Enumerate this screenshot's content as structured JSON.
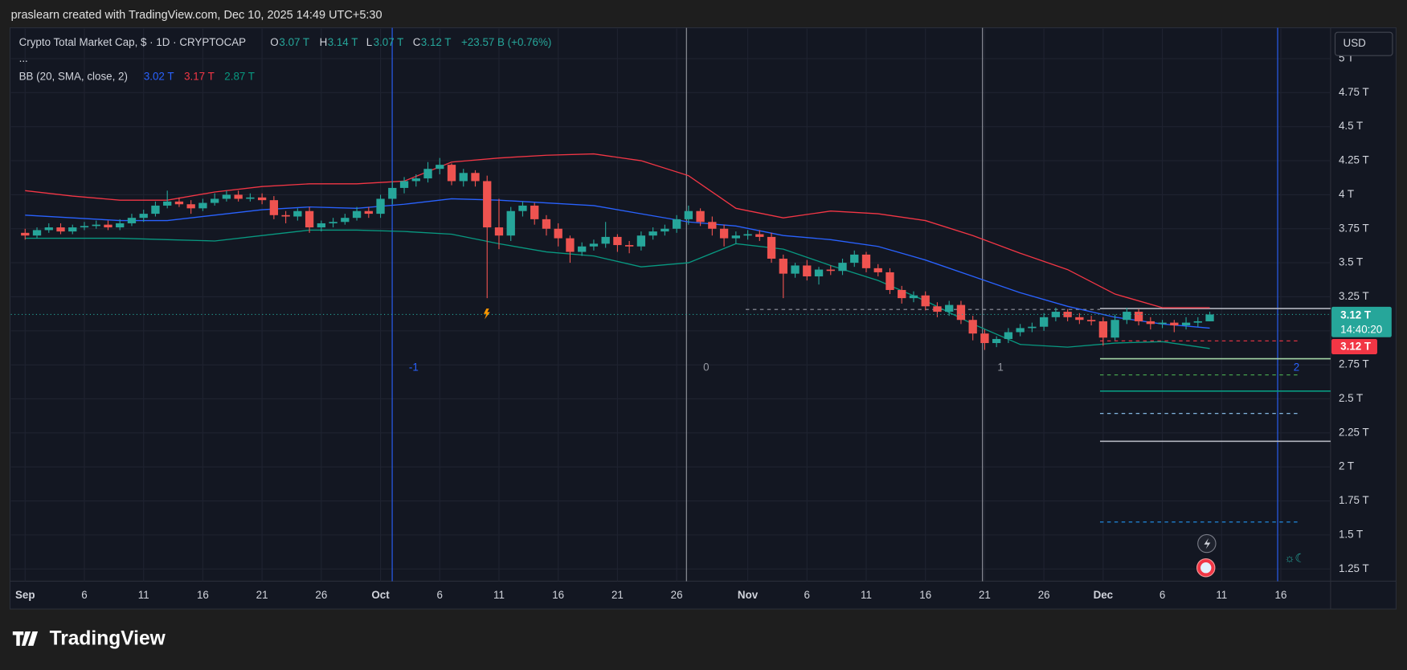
{
  "watermark": "praslearn created with TradingView.com, Dec 10, 2025 14:49 UTC+5:30",
  "footer": "TradingView",
  "currency": "USD",
  "legend": {
    "symbol": "Crypto Total Market Cap, $ · 1D · CRYPTOCAP",
    "o_key": "O",
    "o": "3.07 T",
    "h_key": "H",
    "h": "3.14 T",
    "l_key": "L",
    "l": "3.07 T",
    "c_key": "C",
    "c": "3.12 T",
    "change": "+23.57 B (+0.76%)",
    "more": "...",
    "bb": "BB (20, SMA, close, 2)",
    "bb_mid": "3.02 T",
    "bb_up": "3.17 T",
    "bb_low": "2.87 T"
  },
  "price_tag": {
    "price": "3.12 T",
    "countdown": "14:40:20",
    "marker": "3.12 T"
  },
  "levels": [
    "-1",
    "0",
    "1",
    "2"
  ],
  "chart_data": {
    "type": "candlestick",
    "up_color": "#26a69a",
    "down_color": "#ef5350",
    "grid": true,
    "xlim": [
      -1.2,
      110.2
    ],
    "ylim": [
      1.16,
      5.22
    ],
    "xticks": [
      {
        "value": 0,
        "label": "Sep"
      },
      {
        "value": 5,
        "label": "6"
      },
      {
        "value": 10,
        "label": "11"
      },
      {
        "value": 15,
        "label": "16"
      },
      {
        "value": 20,
        "label": "21"
      },
      {
        "value": 25,
        "label": "26"
      },
      {
        "value": 30,
        "label": "Oct"
      },
      {
        "value": 35,
        "label": "6"
      },
      {
        "value": 40,
        "label": "11"
      },
      {
        "value": 45,
        "label": "16"
      },
      {
        "value": 50,
        "label": "21"
      },
      {
        "value": 55,
        "label": "26"
      },
      {
        "value": 61,
        "label": "Nov"
      },
      {
        "value": 66,
        "label": "6"
      },
      {
        "value": 71,
        "label": "11"
      },
      {
        "value": 76,
        "label": "16"
      },
      {
        "value": 81,
        "label": "21"
      },
      {
        "value": 86,
        "label": "26"
      },
      {
        "value": 91,
        "label": "Dec"
      },
      {
        "value": 96,
        "label": "6"
      },
      {
        "value": 101,
        "label": "11"
      },
      {
        "value": 106,
        "label": "16"
      }
    ],
    "yticks": [
      {
        "value": 1.25,
        "label": "1.25 T"
      },
      {
        "value": 1.5,
        "label": "1.5 T"
      },
      {
        "value": 1.75,
        "label": "1.75 T"
      },
      {
        "value": 2,
        "label": "2 T"
      },
      {
        "value": 2.25,
        "label": "2.25 T"
      },
      {
        "value": 2.5,
        "label": "2.5 T"
      },
      {
        "value": 2.75,
        "label": "2.75 T"
      },
      {
        "value": 3,
        "label": "3 T"
      },
      {
        "value": 3.25,
        "label": "3.25 T"
      },
      {
        "value": 3.5,
        "label": "3.5 T"
      },
      {
        "value": 3.75,
        "label": "3.75 T"
      },
      {
        "value": 4,
        "label": "4 T"
      },
      {
        "value": 4.25,
        "label": "4.25 T"
      },
      {
        "value": 4.5,
        "label": "4.5 T"
      },
      {
        "value": 4.75,
        "label": "4.75 T"
      },
      {
        "value": 5,
        "label": "5 T"
      }
    ],
    "open": [
      3.72,
      3.7,
      3.74,
      3.76,
      3.73,
      3.76,
      3.77,
      3.78,
      3.76,
      3.79,
      3.83,
      3.86,
      3.92,
      3.95,
      3.93,
      3.9,
      3.94,
      3.97,
      4.0,
      3.97,
      3.98,
      3.96,
      3.85,
      3.84,
      3.88,
      3.76,
      3.79,
      3.8,
      3.83,
      3.88,
      3.86,
      3.97,
      4.05,
      4.1,
      4.12,
      4.19,
      4.22,
      4.1,
      4.16,
      4.1,
      3.76,
      3.7,
      3.88,
      3.92,
      3.82,
      3.75,
      3.68,
      3.58,
      3.62,
      3.64,
      3.69,
      3.63,
      3.62,
      3.7,
      3.73,
      3.75,
      3.82,
      3.88,
      3.8,
      3.75,
      3.68,
      3.7,
      3.71,
      3.69,
      3.53,
      3.42,
      3.48,
      3.4,
      3.45,
      3.44,
      3.5,
      3.56,
      3.46,
      3.43,
      3.3,
      3.24,
      3.26,
      3.18,
      3.14,
      3.19,
      3.08,
      2.98,
      2.91,
      2.94,
      2.99,
      3.02,
      3.03,
      3.1,
      3.14,
      3.1,
      3.08,
      3.07,
      2.95,
      3.08,
      3.14,
      3.07,
      3.05,
      3.06,
      3.04,
      3.06,
      3.07
    ],
    "high": [
      3.75,
      3.76,
      3.79,
      3.79,
      3.78,
      3.8,
      3.81,
      3.81,
      3.82,
      3.86,
      3.89,
      3.95,
      4.03,
      3.98,
      3.96,
      3.97,
      4.01,
      4.03,
      4.03,
      4.01,
      4.01,
      3.99,
      3.88,
      3.9,
      3.91,
      3.81,
      3.83,
      3.86,
      3.91,
      3.91,
      4.0,
      4.1,
      4.13,
      4.15,
      4.24,
      4.27,
      4.23,
      4.19,
      4.18,
      4.14,
      3.97,
      3.91,
      3.95,
      3.94,
      3.85,
      3.79,
      3.7,
      3.65,
      3.67,
      3.8,
      3.71,
      3.66,
      3.73,
      3.76,
      3.78,
      3.85,
      3.92,
      3.9,
      3.84,
      3.78,
      3.73,
      3.74,
      3.74,
      3.72,
      3.56,
      3.5,
      3.52,
      3.47,
      3.48,
      3.53,
      3.59,
      3.58,
      3.49,
      3.46,
      3.33,
      3.29,
      3.29,
      3.21,
      3.22,
      3.22,
      3.11,
      3.01,
      2.96,
      3.02,
      3.05,
      3.06,
      3.13,
      3.17,
      3.16,
      3.13,
      3.11,
      3.1,
      3.12,
      3.17,
      3.16,
      3.1,
      3.08,
      3.08,
      3.1,
      3.1,
      3.14
    ],
    "low": [
      3.67,
      3.68,
      3.72,
      3.71,
      3.71,
      3.74,
      3.75,
      3.74,
      3.74,
      3.77,
      3.8,
      3.84,
      3.9,
      3.91,
      3.86,
      3.88,
      3.92,
      3.95,
      3.95,
      3.95,
      3.93,
      3.82,
      3.79,
      3.81,
      3.72,
      3.73,
      3.76,
      3.78,
      3.81,
      3.83,
      3.83,
      3.93,
      4.01,
      4.06,
      4.09,
      4.15,
      4.07,
      4.06,
      4.06,
      3.24,
      3.6,
      3.66,
      3.84,
      3.78,
      3.7,
      3.62,
      3.5,
      3.55,
      3.59,
      3.61,
      3.58,
      3.57,
      3.59,
      3.67,
      3.7,
      3.72,
      3.78,
      3.77,
      3.7,
      3.62,
      3.64,
      3.67,
      3.66,
      3.5,
      3.24,
      3.39,
      3.37,
      3.34,
      3.41,
      3.41,
      3.47,
      3.43,
      3.4,
      3.27,
      3.2,
      3.21,
      3.15,
      3.1,
      3.11,
      3.05,
      2.93,
      2.86,
      2.88,
      2.91,
      2.96,
      2.99,
      3.0,
      3.07,
      3.07,
      3.05,
      3.04,
      2.89,
      2.93,
      3.05,
      3.04,
      3.01,
      3.02,
      2.99,
      3.01,
      3.03,
      3.07
    ],
    "close": [
      3.7,
      3.74,
      3.76,
      3.73,
      3.76,
      3.77,
      3.78,
      3.76,
      3.79,
      3.83,
      3.86,
      3.92,
      3.95,
      3.93,
      3.9,
      3.94,
      3.97,
      4.0,
      3.97,
      3.98,
      3.96,
      3.85,
      3.84,
      3.88,
      3.76,
      3.79,
      3.8,
      3.83,
      3.88,
      3.86,
      3.97,
      4.05,
      4.1,
      4.12,
      4.19,
      4.22,
      4.1,
      4.16,
      4.1,
      3.76,
      3.7,
      3.88,
      3.92,
      3.82,
      3.75,
      3.68,
      3.58,
      3.62,
      3.64,
      3.69,
      3.63,
      3.62,
      3.7,
      3.73,
      3.75,
      3.82,
      3.88,
      3.8,
      3.75,
      3.68,
      3.7,
      3.71,
      3.69,
      3.53,
      3.42,
      3.48,
      3.4,
      3.45,
      3.44,
      3.5,
      3.56,
      3.46,
      3.43,
      3.3,
      3.24,
      3.26,
      3.18,
      3.14,
      3.19,
      3.08,
      2.98,
      2.91,
      2.94,
      2.99,
      3.02,
      3.03,
      3.1,
      3.14,
      3.1,
      3.08,
      3.07,
      2.95,
      3.08,
      3.14,
      3.07,
      3.05,
      3.06,
      3.04,
      3.06,
      3.07,
      3.12
    ],
    "bands": {
      "x": [
        0,
        4,
        8,
        12,
        16,
        20,
        24,
        28,
        32,
        36,
        40,
        44,
        48,
        52,
        56,
        60,
        64,
        68,
        72,
        76,
        80,
        84,
        88,
        92,
        96,
        100
      ],
      "series": [
        {
          "name": "upper",
          "color": "#f23645",
          "values": [
            4.03,
            3.99,
            3.96,
            3.96,
            4.02,
            4.06,
            4.08,
            4.08,
            4.1,
            4.24,
            4.27,
            4.29,
            4.3,
            4.25,
            4.14,
            3.9,
            3.83,
            3.88,
            3.86,
            3.81,
            3.7,
            3.57,
            3.45,
            3.27,
            3.17,
            3.17
          ]
        },
        {
          "name": "basis",
          "color": "#2962ff",
          "values": [
            3.85,
            3.83,
            3.81,
            3.81,
            3.85,
            3.89,
            3.91,
            3.9,
            3.93,
            3.97,
            3.96,
            3.94,
            3.92,
            3.86,
            3.8,
            3.77,
            3.7,
            3.67,
            3.62,
            3.52,
            3.4,
            3.28,
            3.18,
            3.1,
            3.05,
            3.02
          ]
        },
        {
          "name": "lower",
          "color": "#089981",
          "values": [
            3.68,
            3.68,
            3.68,
            3.67,
            3.66,
            3.7,
            3.74,
            3.74,
            3.73,
            3.71,
            3.64,
            3.58,
            3.55,
            3.47,
            3.5,
            3.64,
            3.6,
            3.48,
            3.37,
            3.22,
            3.05,
            2.9,
            2.88,
            2.91,
            2.92,
            2.87
          ]
        }
      ]
    }
  }
}
